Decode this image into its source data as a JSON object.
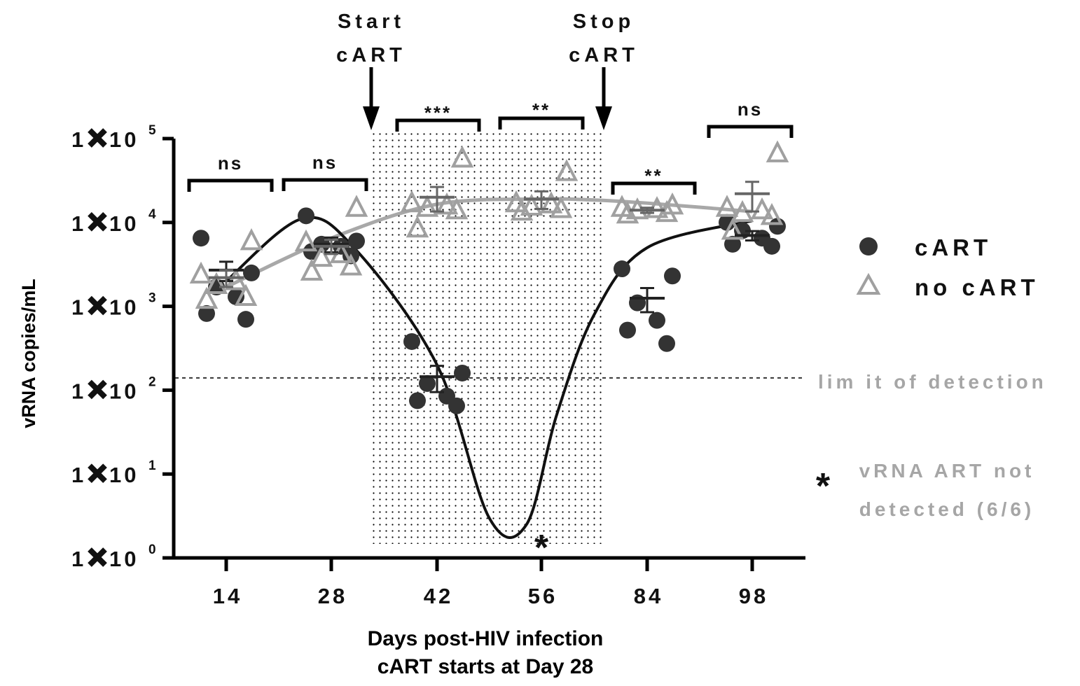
{
  "chart_data": {
    "type": "scatter",
    "ylabel": "vRNA copies/mL",
    "xlabel_lines": [
      "Days post-HIV infection",
      "cART starts at Day 28"
    ],
    "y_scale": "log",
    "ylim": [
      1,
      100000
    ],
    "yticks": [
      {
        "value": 1,
        "mantissa": "1",
        "base": "10",
        "exp": "0"
      },
      {
        "value": 10,
        "mantissa": "1",
        "base": "10",
        "exp": "1"
      },
      {
        "value": 100,
        "mantissa": "1",
        "base": "10",
        "exp": "2"
      },
      {
        "value": 1000,
        "mantissa": "1",
        "base": "10",
        "exp": "3"
      },
      {
        "value": 10000,
        "mantissa": "1",
        "base": "10",
        "exp": "4"
      },
      {
        "value": 100000,
        "mantissa": "1",
        "base": "10",
        "exp": "5"
      }
    ],
    "categories": [
      "14",
      "28",
      "42",
      "56",
      "84",
      "98"
    ],
    "series": [
      {
        "name": "cART",
        "marker": "filled-circle",
        "color": "#333333",
        "points": [
          [
            6500,
            2500,
            1700,
            1300,
            820,
            700
          ],
          [
            12000,
            6000,
            5500,
            5200,
            4500,
            4000
          ],
          [
            380,
            160,
            120,
            85,
            75,
            65
          ],
          [],
          [
            2800,
            2300,
            1100,
            680,
            520,
            360
          ],
          [
            10000,
            9000,
            8000,
            6500,
            5500,
            5200
          ]
        ],
        "mean": [
          2700,
          5500,
          145,
          null,
          1250,
          7000
        ],
        "sem": [
          700,
          1100,
          50,
          null,
          400,
          900
        ],
        "fit_curve": [
          [
            14,
            2000
          ],
          [
            24,
            11000
          ],
          [
            31,
            5000
          ],
          [
            42,
            200
          ],
          [
            49,
            3
          ],
          [
            54,
            2.5
          ],
          [
            60,
            50
          ],
          [
            70,
            800
          ],
          [
            84,
            5000
          ],
          [
            98,
            10500
          ]
        ]
      },
      {
        "name": "no cART",
        "marker": "open-triangle",
        "color": "#a0a0a0",
        "points": [
          [
            6000,
            2400,
            2000,
            1800,
            1300,
            1200
          ],
          [
            15000,
            5800,
            4200,
            3800,
            3000,
            2600
          ],
          [
            58000,
            17000,
            16000,
            15000,
            14000,
            8500
          ],
          [
            40000,
            17000,
            16500,
            15500,
            14500,
            13500
          ],
          [
            16000,
            15000,
            14500,
            14000,
            13000,
            12500
          ],
          [
            67000,
            15000,
            14000,
            13000,
            12000,
            8000
          ]
        ],
        "mean": [
          2200,
          5200,
          20000,
          19000,
          14000,
          22000
        ],
        "sem": [
          500,
          1000,
          6500,
          4500,
          1000,
          8500
        ],
        "fit_curve": [
          [
            14,
            1700
          ],
          [
            28,
            6500
          ],
          [
            42,
            16500
          ],
          [
            56,
            19000
          ],
          [
            70,
            18500
          ],
          [
            84,
            17000
          ],
          [
            98,
            13500
          ]
        ]
      }
    ],
    "lod": {
      "value": 140,
      "label": "lim it of detection"
    },
    "cart_period": {
      "from_category": "28",
      "to_category": "56",
      "pattern": "dotted"
    },
    "arrows": [
      {
        "at": "28",
        "label_lines": [
          "Start",
          "cART"
        ]
      },
      {
        "at": "56",
        "label_lines": [
          "Stop",
          "cART"
        ]
      }
    ],
    "significance": [
      {
        "category": "14",
        "label": "ns"
      },
      {
        "category": "28",
        "label": "ns"
      },
      {
        "category": "42",
        "label": "***"
      },
      {
        "category": "56",
        "label": "**"
      },
      {
        "category": "84",
        "label": "**"
      },
      {
        "category": "98",
        "label": "ns"
      }
    ],
    "not_detected": {
      "category": "56",
      "mark": "*"
    },
    "footnote": {
      "mark": "*",
      "lines": [
        "vRNA ART not",
        "detected (6/6)"
      ]
    },
    "legend": {
      "placement": "right"
    }
  }
}
